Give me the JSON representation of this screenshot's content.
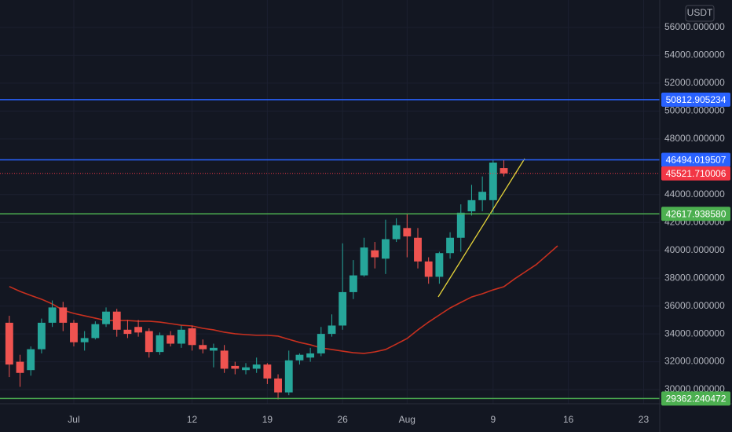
{
  "chart_data": {
    "type": "candlestick",
    "currency": "USDT",
    "categories": [
      null,
      null,
      null,
      null,
      null,
      null,
      "Jul",
      null,
      null,
      null,
      null,
      null,
      null,
      null,
      null,
      null,
      null,
      "12",
      null,
      null,
      null,
      null,
      null,
      null,
      "19",
      null,
      null,
      null,
      null,
      null,
      null,
      "26",
      null,
      null,
      null,
      null,
      null,
      "Aug",
      null,
      null,
      null,
      null,
      null,
      null,
      null,
      "9",
      null,
      null,
      null,
      null,
      null,
      null,
      "16",
      null,
      null,
      null,
      null,
      null,
      null,
      "23",
      null
    ],
    "open": [
      34800,
      32000,
      31400,
      32900,
      34800,
      35900,
      34800,
      33400,
      33700,
      34700,
      35600,
      34300,
      34500,
      34200,
      32700,
      33900,
      33300,
      34400,
      33200,
      32800,
      32800,
      31700,
      31400,
      31500,
      31800,
      30800,
      29800,
      32100,
      32300,
      32600,
      34000,
      34600,
      37000,
      38200,
      40000,
      39400,
      40800,
      41600,
      40900,
      39200,
      38100,
      39800,
      40900,
      42800,
      43600,
      43600,
      45900,
      null,
      null,
      null,
      null,
      null,
      null,
      null,
      null,
      null,
      null,
      null,
      null,
      null,
      null
    ],
    "high": [
      35300,
      32500,
      33100,
      35100,
      36400,
      36300,
      35000,
      34200,
      34900,
      35900,
      35800,
      35000,
      35000,
      34400,
      34100,
      34200,
      34600,
      34600,
      33600,
      33300,
      33200,
      32000,
      31900,
      32300,
      31900,
      31100,
      32800,
      32600,
      33000,
      34500,
      35400,
      40500,
      39300,
      40900,
      40600,
      42200,
      42300,
      42600,
      41600,
      39500,
      39900,
      41300,
      43300,
      44700,
      45300,
      46500,
      46500,
      null,
      null,
      null,
      null,
      null,
      null,
      null,
      null,
      null,
      null,
      null,
      null,
      null,
      null
    ],
    "low": [
      30900,
      30200,
      31000,
      32600,
      34500,
      34200,
      33100,
      32800,
      33600,
      34500,
      33800,
      33700,
      33800,
      32300,
      32500,
      33100,
      33000,
      32800,
      32600,
      31600,
      31200,
      31100,
      31100,
      31200,
      30400,
      29300,
      29600,
      31800,
      32000,
      32400,
      33800,
      34300,
      36500,
      38100,
      38700,
      38300,
      40600,
      39500,
      38700,
      37600,
      37600,
      39400,
      39900,
      42500,
      42800,
      42700,
      45300,
      null,
      null,
      null,
      null,
      null,
      null,
      null,
      null,
      null,
      null,
      null,
      null,
      null,
      null
    ],
    "close": [
      31800,
      31200,
      32900,
      34800,
      35900,
      34800,
      33400,
      33700,
      34700,
      35600,
      34300,
      34000,
      34100,
      32700,
      33900,
      33300,
      34300,
      33200,
      32900,
      33000,
      31500,
      31500,
      31600,
      31800,
      30800,
      29800,
      32100,
      32500,
      32600,
      34000,
      34600,
      37000,
      38200,
      40200,
      39500,
      40800,
      41800,
      41000,
      39200,
      38100,
      39800,
      40900,
      42700,
      43600,
      44200,
      46300,
      45521.710006,
      null,
      null,
      null,
      null,
      null,
      null,
      null,
      null,
      null,
      null,
      null,
      null,
      null,
      null
    ],
    "up_color": "#26a69a",
    "down_color": "#ef5350",
    "moving_average": {
      "color": "#c7301f",
      "values": [
        37400,
        37050,
        36760,
        36490,
        36150,
        35700,
        35470,
        35300,
        35130,
        34960,
        34960,
        34960,
        34910,
        34910,
        34850,
        34740,
        34620,
        34570,
        34400,
        34290,
        34120,
        34010,
        33950,
        33900,
        33900,
        33840,
        33610,
        33390,
        33220,
        32990,
        32880,
        32760,
        32650,
        32600,
        32710,
        32880,
        33270,
        33670,
        34290,
        34850,
        35360,
        35860,
        36260,
        36650,
        36880,
        37160,
        37390,
        37950,
        38460,
        38970,
        39640,
        40320,
        null,
        null,
        null,
        null,
        null,
        null,
        null,
        null,
        null
      ]
    },
    "levels": [
      {
        "value": 50812.905234,
        "label": "50812.905234",
        "color": "#2962ff"
      },
      {
        "value": 46494.019507,
        "label": "46494.019507",
        "color": "#2962ff"
      },
      {
        "value": 42617.93858,
        "label": "42617.938580",
        "color": "#4caf50"
      },
      {
        "value": 29362.240472,
        "label": "29362.240472",
        "color": "#4caf50"
      }
    ],
    "last_price": {
      "value": 45521.710006,
      "label": "45521.710006",
      "color": "#f23645"
    },
    "ylim": [
      29100,
      57970
    ],
    "yticks": [
      {
        "value": 56000,
        "label": "56000.000000"
      },
      {
        "value": 54000,
        "label": "54000.000000"
      },
      {
        "value": 52000,
        "label": "52000.000000"
      },
      {
        "value": 50000,
        "label": "50000.000000"
      },
      {
        "value": 48000,
        "label": "48000.000000"
      },
      {
        "value": 44000,
        "label": "44000.000000"
      },
      {
        "value": 42000,
        "label": "42000.000000"
      },
      {
        "value": 40000,
        "label": "40000.000000"
      },
      {
        "value": 38000,
        "label": "38000.000000"
      },
      {
        "value": 36000,
        "label": "36000.000000"
      },
      {
        "value": 34000,
        "label": "34000.000000"
      },
      {
        "value": 32000,
        "label": "32000.000000"
      },
      {
        "value": 30000,
        "label": "30000.000000"
      }
    ],
    "grid": true
  }
}
